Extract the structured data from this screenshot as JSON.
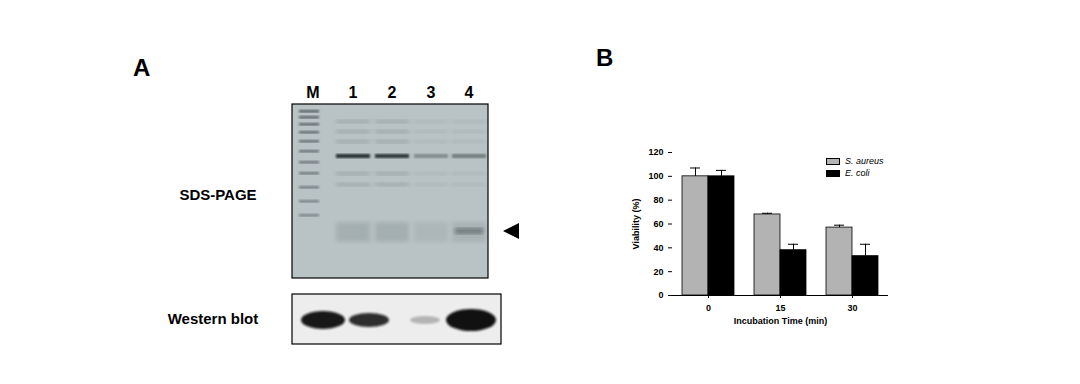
{
  "panel_a": {
    "label": "A",
    "lanes": [
      "M",
      "1",
      "2",
      "3",
      "4"
    ],
    "rows": [
      "SDS-PAGE",
      "Western blot"
    ]
  },
  "panel_b": {
    "label": "B"
  },
  "chart_data": {
    "type": "bar",
    "categories": [
      "0",
      "15",
      "30"
    ],
    "xlabel": "Incubation Time (min)",
    "ylabel": "Viability (%)",
    "ylim": [
      0,
      120
    ],
    "yticks": [
      0,
      20,
      40,
      60,
      80,
      100,
      120
    ],
    "legend": "upper right",
    "series": [
      {
        "name": "S. aureus",
        "color": "#b3b3b3",
        "values": [
          100,
          68,
          57
        ],
        "errors": [
          7,
          1,
          2
        ]
      },
      {
        "name": "E. coli",
        "color": "#000000",
        "values": [
          100,
          38,
          33
        ],
        "errors": [
          5,
          5,
          10
        ]
      }
    ]
  }
}
